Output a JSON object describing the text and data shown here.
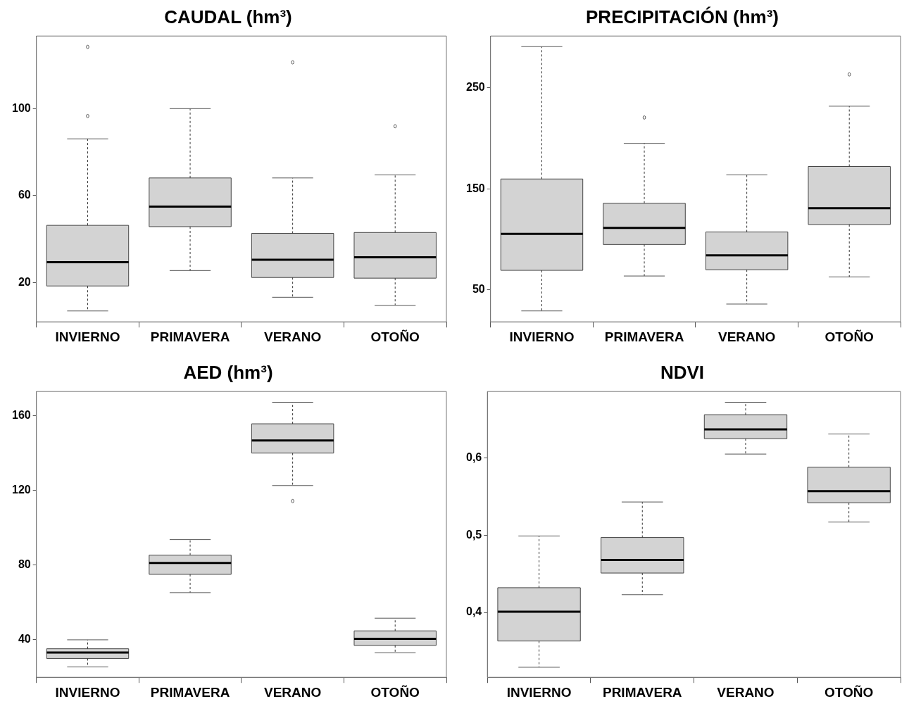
{
  "chart_data": [
    {
      "type": "box",
      "title": "CAUDAL (hm³)",
      "categories": [
        "INVIERNO",
        "PRIMAVERA",
        "VERANO",
        "OTOÑO"
      ],
      "ylim": [
        1.9,
        133.4
      ],
      "yticks": [
        20,
        60,
        100
      ],
      "grid": false,
      "color": "#d3d3d3",
      "boxes": [
        {
          "low": 6.9,
          "q1": 18.4,
          "median": 29.3,
          "q3": 46.3,
          "high": 86.1,
          "outliers": [
            96.6,
            128.4
          ]
        },
        {
          "low": 25.5,
          "q1": 45.7,
          "median": 54.9,
          "q3": 68.1,
          "high": 100
        },
        {
          "low": 13.2,
          "q1": 22.3,
          "median": 30.5,
          "q3": 42.6,
          "high": 68.1,
          "outliers": [
            121.3
          ]
        },
        {
          "low": 9.5,
          "q1": 22.0,
          "median": 31.6,
          "q3": 43.0,
          "high": 69.5,
          "outliers": [
            91.9
          ]
        }
      ]
    },
    {
      "type": "box",
      "title": "PRECIPITACIÓN (hm³)",
      "categories": [
        "INVIERNO",
        "PRIMAVERA",
        "VERANO",
        "OTOÑO"
      ],
      "ylim": [
        18.2,
        301.3
      ],
      "yticks": [
        50,
        150,
        250
      ],
      "grid": false,
      "color": "#d3d3d3",
      "boxes": [
        {
          "low": 29.0,
          "q1": 69.2,
          "median": 105.3,
          "q3": 159.7,
          "high": 290.8
        },
        {
          "low": 63.6,
          "q1": 94.8,
          "median": 111.2,
          "q3": 135.6,
          "high": 195.0,
          "outliers": [
            220.6
          ]
        },
        {
          "low": 35.8,
          "q1": 69.8,
          "median": 84.0,
          "q3": 107.2,
          "high": 163.8
        },
        {
          "low": 62.7,
          "q1": 114.6,
          "median": 130.7,
          "q3": 172.1,
          "high": 231.8,
          "outliers": [
            263.3
          ]
        }
      ]
    },
    {
      "type": "box",
      "title": "AED (hm³)",
      "categories": [
        "INVIERNO",
        "PRIMAVERA",
        "VERANO",
        "OTOÑO"
      ],
      "ylim": [
        19.6,
        172.8
      ],
      "yticks": [
        40,
        80,
        120,
        160
      ],
      "grid": false,
      "color": "#d3d3d3",
      "boxes": [
        {
          "low": 25.2,
          "q1": 29.7,
          "median": 32.9,
          "q3": 34.9,
          "high": 39.7
        },
        {
          "low": 65.0,
          "q1": 74.8,
          "median": 80.9,
          "q3": 85.1,
          "high": 93.4
        },
        {
          "low": 122.4,
          "q1": 139.8,
          "median": 146.6,
          "q3": 155.5,
          "high": 167.0,
          "outliers": [
            114.1
          ]
        },
        {
          "low": 32.7,
          "q1": 36.7,
          "median": 40.2,
          "q3": 44.5,
          "high": 51.3
        }
      ]
    },
    {
      "type": "box",
      "title": "NDVI",
      "categories": [
        "INVIERNO",
        "PRIMAVERA",
        "VERANO",
        "OTOÑO"
      ],
      "ylim": [
        0.316,
        0.686
      ],
      "yticks": [
        {
          "value": 0.4,
          "label": "0,4"
        },
        {
          "value": 0.5,
          "label": "0,5"
        },
        {
          "value": 0.6,
          "label": "0,6"
        }
      ],
      "grid": false,
      "color": "#d3d3d3",
      "boxes": [
        {
          "low": 0.329,
          "q1": 0.363,
          "median": 0.401,
          "q3": 0.432,
          "high": 0.499
        },
        {
          "low": 0.423,
          "q1": 0.451,
          "median": 0.468,
          "q3": 0.497,
          "high": 0.543
        },
        {
          "low": 0.605,
          "q1": 0.625,
          "median": 0.637,
          "q3": 0.656,
          "high": 0.672
        },
        {
          "low": 0.517,
          "q1": 0.542,
          "median": 0.557,
          "q3": 0.588,
          "high": 0.631
        }
      ]
    }
  ]
}
